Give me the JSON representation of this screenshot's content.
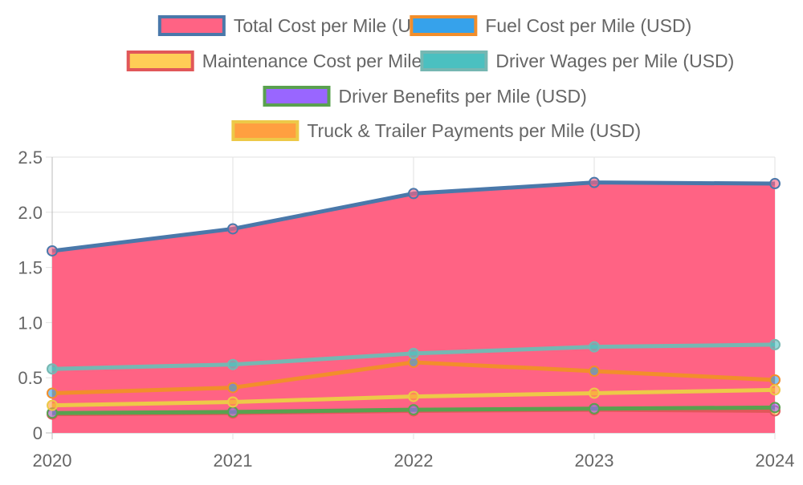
{
  "chart_data": {
    "type": "line",
    "categories": [
      "2020",
      "2021",
      "2022",
      "2023",
      "2024"
    ],
    "ylim": [
      0,
      2.5
    ],
    "yticks": [
      "0",
      "0.5",
      "1.0",
      "1.5",
      "2.0",
      "2.5"
    ],
    "grid": true,
    "legend_position": "top",
    "series": [
      {
        "name": "Total Cost per Mile (USD)",
        "values": [
          1.65,
          1.85,
          2.17,
          2.27,
          2.26
        ],
        "fill": "#ff6384",
        "border": "#4a78aa",
        "filled": true
      },
      {
        "name": "Fuel Cost per Mile (USD)",
        "values": [
          0.36,
          0.41,
          0.64,
          0.56,
          0.48
        ],
        "fill": "#36a2eb",
        "border": "#f28e2b",
        "filled": false
      },
      {
        "name": "Maintenance Cost per Mile (USD)",
        "values": [
          0.17,
          0.18,
          0.2,
          0.21,
          0.2
        ],
        "fill": "#ffcd56",
        "border": "#e15759",
        "filled": false
      },
      {
        "name": "Driver Wages per Mile (USD)",
        "values": [
          0.58,
          0.62,
          0.72,
          0.78,
          0.8
        ],
        "fill": "#4bc0c0",
        "border": "#76b7b2",
        "filled": false
      },
      {
        "name": "Driver Benefits per Mile (USD)",
        "values": [
          0.18,
          0.19,
          0.21,
          0.22,
          0.23
        ],
        "fill": "#9966ff",
        "border": "#59a14f",
        "filled": false
      },
      {
        "name": "Truck & Trailer Payments per Mile (USD)",
        "values": [
          0.25,
          0.28,
          0.33,
          0.36,
          0.39
        ],
        "fill": "#ff9f40",
        "border": "#edc948",
        "filled": false
      }
    ]
  }
}
